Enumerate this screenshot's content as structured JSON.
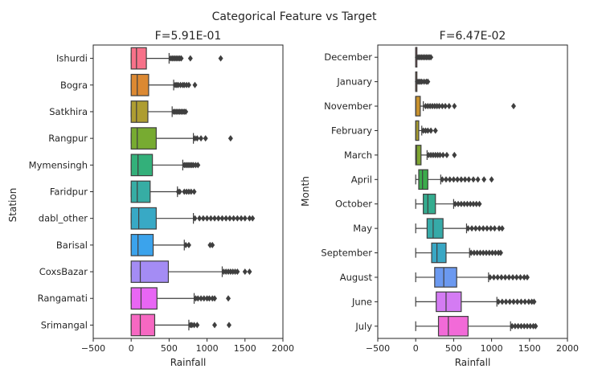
{
  "suptitle": "Categorical Feature vs Target",
  "chart_data": [
    {
      "type": "boxplot-horizontal",
      "title": "F=5.91E-01",
      "xlabel": "Rainfall",
      "ylabel": "Station",
      "xlim": [
        -500,
        2000
      ],
      "xticks": [
        -500,
        0,
        500,
        1000,
        1500,
        2000
      ],
      "xtick_labels": [
        "−500",
        "0",
        "500",
        "1000",
        "1500",
        "2000"
      ],
      "boxes": [
        {
          "label": "Ishurdi",
          "color": "#f77189",
          "whisker_low": 0,
          "q1": 0,
          "median": 70,
          "q3": 200,
          "whisker_high": 500,
          "outliers": [
            520,
            540,
            560,
            580,
            600,
            620,
            640,
            660,
            780,
            1180
          ]
        },
        {
          "label": "Bogra",
          "color": "#dc8932",
          "whisker_low": 0,
          "q1": 0,
          "median": 80,
          "q3": 230,
          "whisker_high": 560,
          "outliers": [
            580,
            600,
            620,
            650,
            680,
            700,
            730,
            760,
            840
          ]
        },
        {
          "label": "Satkhira",
          "color": "#ae9d31",
          "whisker_low": 0,
          "q1": 0,
          "median": 70,
          "q3": 220,
          "whisker_high": 540,
          "outliers": [
            560,
            580,
            600,
            620,
            640,
            660,
            680,
            700,
            720
          ]
        },
        {
          "label": "Rangpur",
          "color": "#77ab31",
          "whisker_low": 0,
          "q1": 0,
          "median": 80,
          "q3": 330,
          "whisker_high": 820,
          "outliers": [
            840,
            870,
            920,
            980,
            1310
          ]
        },
        {
          "label": "Mymensingh",
          "color": "#33b07a",
          "whisker_low": 0,
          "q1": 0,
          "median": 90,
          "q3": 280,
          "whisker_high": 680,
          "outliers": [
            700,
            720,
            740,
            760,
            780,
            800,
            820,
            850,
            880
          ]
        },
        {
          "label": "Faridpur",
          "color": "#36ada4",
          "whisker_low": 0,
          "q1": 0,
          "median": 80,
          "q3": 250,
          "whisker_high": 610,
          "outliers": [
            620,
            640,
            700,
            730,
            760,
            790,
            830
          ]
        },
        {
          "label": "dabl_other",
          "color": "#38a9c5",
          "whisker_low": 0,
          "q1": 0,
          "median": 100,
          "q3": 330,
          "whisker_high": 820,
          "outliers": [
            840,
            900,
            950,
            1000,
            1050,
            1100,
            1150,
            1200,
            1250,
            1300,
            1350,
            1400,
            1450,
            1500,
            1560,
            1600
          ]
        },
        {
          "label": "Barisal",
          "color": "#3ba3ec",
          "whisker_low": 0,
          "q1": 0,
          "median": 90,
          "q3": 290,
          "whisker_high": 700,
          "outliers": [
            720,
            760,
            1040,
            1070
          ]
        },
        {
          "label": "CoxsBazar",
          "color": "#a48cf4",
          "whisker_low": 0,
          "q1": 0,
          "median": 120,
          "q3": 490,
          "whisker_high": 1200,
          "outliers": [
            1220,
            1250,
            1280,
            1310,
            1340,
            1370,
            1400,
            1500,
            1560
          ]
        },
        {
          "label": "Rangamati",
          "color": "#e866f4",
          "whisker_low": 0,
          "q1": 0,
          "median": 130,
          "q3": 340,
          "whisker_high": 830,
          "outliers": [
            850,
            880,
            920,
            960,
            1000,
            1030,
            1070,
            1100,
            1280
          ]
        },
        {
          "label": "Srimangal",
          "color": "#f668c2",
          "whisker_low": 0,
          "q1": 0,
          "median": 120,
          "q3": 310,
          "whisker_high": 760,
          "outliers": [
            780,
            800,
            830,
            870,
            1100,
            1290
          ]
        }
      ]
    },
    {
      "type": "boxplot-horizontal",
      "title": "F=6.47E-02",
      "xlabel": "Rainfall",
      "ylabel": "Month",
      "xlim": [
        -500,
        2000
      ],
      "xticks": [
        -500,
        0,
        500,
        1000,
        1500,
        2000
      ],
      "xtick_labels": [
        "−500",
        "0",
        "500",
        "1000",
        "1500",
        "2000"
      ],
      "boxes": [
        {
          "label": "December",
          "color": "#f77189",
          "whisker_low": 0,
          "q1": 0,
          "median": 0,
          "q3": 2,
          "whisker_high": 6,
          "outliers": [
            20,
            40,
            60,
            80,
            100,
            120,
            140,
            160,
            180,
            200
          ]
        },
        {
          "label": "January",
          "color": "#e0805e",
          "whisker_low": 0,
          "q1": 0,
          "median": 0,
          "q3": 2,
          "whisker_high": 6,
          "outliers": [
            20,
            40,
            60,
            80,
            110,
            140,
            160
          ]
        },
        {
          "label": "November",
          "color": "#c8922e",
          "whisker_low": 0,
          "q1": 0,
          "median": 0,
          "q3": 60,
          "whisker_high": 100,
          "outliers": [
            130,
            160,
            190,
            220,
            250,
            280,
            310,
            350,
            390,
            440,
            510,
            1290
          ]
        },
        {
          "label": "February",
          "color": "#a79c30",
          "whisker_low": 0,
          "q1": 0,
          "median": 0,
          "q3": 40,
          "whisker_high": 80,
          "outliers": [
            100,
            130,
            160,
            200,
            260
          ]
        },
        {
          "label": "March",
          "color": "#7ea531",
          "whisker_low": 0,
          "q1": 0,
          "median": 10,
          "q3": 70,
          "whisker_high": 150,
          "outliers": [
            170,
            200,
            230,
            260,
            290,
            320,
            360,
            410,
            510
          ]
        },
        {
          "label": "April",
          "color": "#3bab4b",
          "whisker_low": 0,
          "q1": 40,
          "median": 90,
          "q3": 160,
          "whisker_high": 330,
          "outliers": [
            350,
            400,
            450,
            500,
            550,
            600,
            650,
            700,
            760,
            820,
            900,
            1000
          ]
        },
        {
          "label": "October",
          "color": "#34ac8f",
          "whisker_low": 0,
          "q1": 100,
          "median": 160,
          "q3": 260,
          "whisker_high": 500,
          "outliers": [
            520,
            560,
            600,
            640,
            680,
            720,
            760,
            800,
            840
          ]
        },
        {
          "label": "May",
          "color": "#36aaa8",
          "whisker_low": 0,
          "q1": 150,
          "median": 230,
          "q3": 360,
          "whisker_high": 670,
          "outliers": [
            690,
            740,
            790,
            840,
            890,
            940,
            990,
            1040,
            1100,
            1140
          ]
        },
        {
          "label": "September",
          "color": "#39a7c4",
          "whisker_low": 0,
          "q1": 210,
          "median": 280,
          "q3": 400,
          "whisker_high": 710,
          "outliers": [
            730,
            770,
            810,
            850,
            890,
            930,
            970,
            1010,
            1050,
            1090,
            1120
          ]
        },
        {
          "label": "August",
          "color": "#6b99f0",
          "whisker_low": 0,
          "q1": 250,
          "median": 370,
          "q3": 540,
          "whisker_high": 960,
          "outliers": [
            980,
            1030,
            1080,
            1130,
            1180,
            1230,
            1280,
            1330,
            1380,
            1430,
            1470
          ]
        },
        {
          "label": "June",
          "color": "#d47bf3",
          "whisker_low": 0,
          "q1": 270,
          "median": 400,
          "q3": 600,
          "whisker_high": 1070,
          "outliers": [
            1090,
            1140,
            1190,
            1240,
            1290,
            1340,
            1390,
            1440,
            1490,
            1530,
            1560
          ]
        },
        {
          "label": "July",
          "color": "#f26ad8",
          "whisker_low": 0,
          "q1": 300,
          "median": 430,
          "q3": 690,
          "whisker_high": 1250,
          "outliers": [
            1270,
            1310,
            1350,
            1390,
            1430,
            1470,
            1510,
            1550,
            1580
          ]
        }
      ]
    }
  ]
}
